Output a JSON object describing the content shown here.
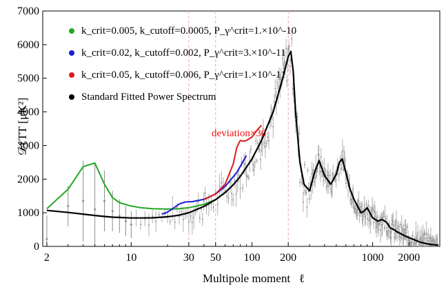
{
  "chart_data": {
    "type": "line",
    "xscale": "log",
    "xlim": [
      1.85,
      3600
    ],
    "ylim": [
      0,
      7000
    ],
    "xlabel": "Multipole moment   ℓ",
    "ylabel": "𝒟ℓTT [μK²]",
    "x_ticks": [
      2,
      10,
      30,
      50,
      100,
      200,
      1000,
      2000
    ],
    "y_ticks": [
      0,
      1000,
      2000,
      3000,
      4000,
      5000,
      6000,
      7000
    ],
    "dashed_markers": [
      30,
      50,
      200
    ],
    "annotation": "deviation×30",
    "legend_location": "top-left",
    "series": [
      {
        "name": "k_crit=0.005, k_cutoff=0.0005, P_γ^crit=1.×10^-10",
        "color": "#21a721",
        "x": [
          2,
          3,
          4,
          5,
          6,
          7,
          8,
          10,
          12,
          15,
          20,
          25,
          30,
          40,
          50
        ],
        "y": [
          1120,
          1700,
          2370,
          2480,
          1850,
          1450,
          1300,
          1200,
          1150,
          1120,
          1110,
          1120,
          1150,
          1250,
          1390
        ]
      },
      {
        "name": "k_crit=0.02, k_cutoff=0.002, P_γ^crit=3.×10^-11",
        "color": "#1a1ad0",
        "x": [
          18,
          20,
          22,
          25,
          28,
          32,
          40,
          50,
          60,
          75,
          90
        ],
        "y": [
          960,
          1020,
          1120,
          1260,
          1320,
          1330,
          1400,
          1560,
          1780,
          2200,
          2700
        ]
      },
      {
        "name": "k_crit=0.05, k_cutoff=0.006, P_γ^crit=1.×10^-11",
        "color": "#dd1a1a",
        "x": [
          40,
          50,
          60,
          70,
          75,
          80,
          85,
          90,
          100,
          110,
          120
        ],
        "y": [
          1390,
          1560,
          1850,
          2450,
          2950,
          3150,
          3130,
          3150,
          3250,
          3450,
          3600
        ]
      },
      {
        "name": "Standard Fitted Power Spectrum",
        "color": "#000000",
        "x": [
          2,
          3,
          4,
          5,
          6,
          7,
          8,
          10,
          12,
          15,
          20,
          25,
          30,
          40,
          50,
          60,
          70,
          80,
          100,
          120,
          150,
          180,
          200,
          210,
          220,
          230,
          250,
          270,
          300,
          330,
          360,
          400,
          450,
          500,
          530,
          560,
          600,
          650,
          700,
          750,
          800,
          850,
          900,
          1000,
          1100,
          1200,
          1300,
          1400,
          1500,
          1600,
          1700,
          1800,
          2000,
          2200,
          2500,
          2800,
          3200,
          3500
        ],
        "y": [
          1070,
          1010,
          960,
          920,
          890,
          870,
          860,
          845,
          845,
          850,
          880,
          930,
          1000,
          1190,
          1390,
          1600,
          1830,
          2080,
          2600,
          3150,
          4000,
          5000,
          5650,
          5800,
          5200,
          4000,
          2500,
          1850,
          1650,
          2200,
          2550,
          2100,
          1850,
          2150,
          2500,
          2600,
          2200,
          1700,
          1400,
          1200,
          1000,
          1050,
          1150,
          850,
          750,
          800,
          720,
          550,
          500,
          430,
          380,
          330,
          260,
          200,
          120,
          80,
          50,
          35
        ]
      }
    ],
    "observed_scatter": {
      "color": "#8c8c8c",
      "note_points": [
        {
          "x": 2,
          "y": 220,
          "err": 700
        },
        {
          "x": 3,
          "y": 1200,
          "err": 600
        },
        {
          "x": 4,
          "y": 1350,
          "err": 1200
        },
        {
          "x": 5,
          "y": 1100,
          "err": 1350
        },
        {
          "x": 6,
          "y": 1350,
          "err": 900
        },
        {
          "x": 7,
          "y": 1050,
          "err": 600
        },
        {
          "x": 8,
          "y": 900,
          "err": 500
        },
        {
          "x": 9,
          "y": 750,
          "err": 450
        },
        {
          "x": 10,
          "y": 650,
          "err": 400
        }
      ]
    }
  }
}
